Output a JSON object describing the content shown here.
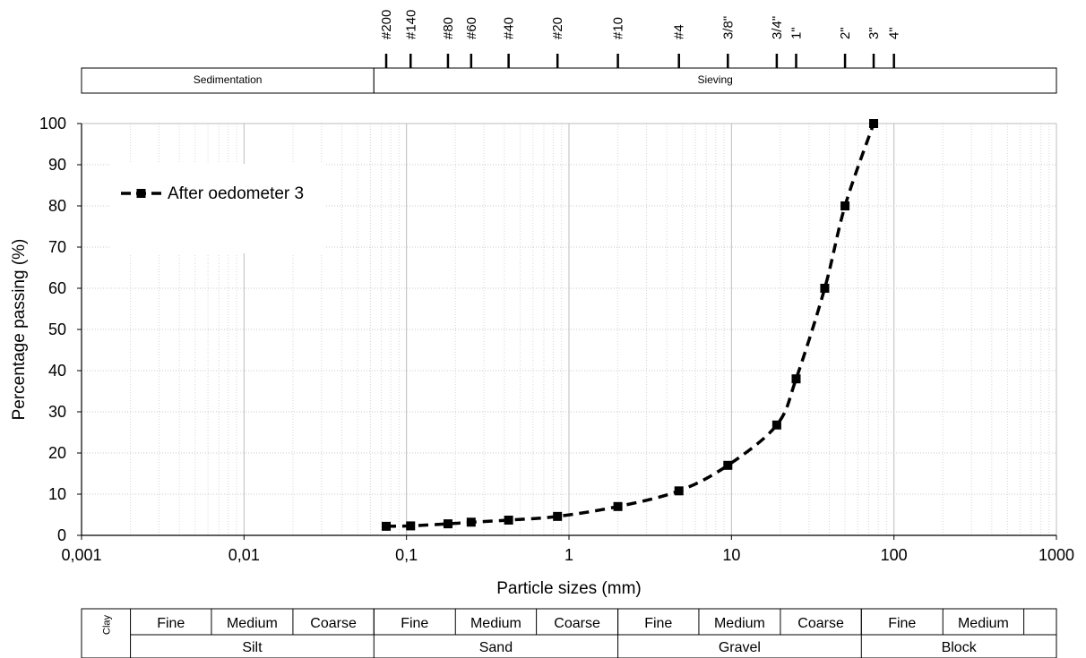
{
  "chart_data": {
    "type": "line",
    "xscale": "log",
    "xlim": [
      0.001,
      1000
    ],
    "ylim": [
      0,
      100
    ],
    "xlabel": "Particle sizes (mm)",
    "ylabel": "Percentage passing (%)",
    "x_tick_labels": [
      "0,001",
      "0,01",
      "0,1",
      "1",
      "10",
      "100",
      "1000"
    ],
    "y_tick_labels": [
      "0",
      "10",
      "20",
      "30",
      "40",
      "50",
      "60",
      "70",
      "80",
      "90",
      "100"
    ],
    "grid": true,
    "legend_position": "top-left",
    "series": [
      {
        "name": "After oedometer 3",
        "line_style": "dashed",
        "marker": "square",
        "color": "#000000",
        "x": [
          0.075,
          0.106,
          0.18,
          0.25,
          0.425,
          0.85,
          2.0,
          4.75,
          9.5,
          19.0,
          25.0,
          37.5,
          50.0,
          75.0
        ],
        "y": [
          2.2,
          2.3,
          2.8,
          3.2,
          3.7,
          4.6,
          7.0,
          10.8,
          17.0,
          26.8,
          38.0,
          60.0,
          80.0,
          100.0
        ]
      }
    ],
    "sieves": [
      {
        "label": "#200",
        "mm": 0.075
      },
      {
        "label": "#140",
        "mm": 0.106
      },
      {
        "label": "#80",
        "mm": 0.18
      },
      {
        "label": "#60",
        "mm": 0.25
      },
      {
        "label": "#40",
        "mm": 0.425
      },
      {
        "label": "#20",
        "mm": 0.85
      },
      {
        "label": "#10",
        "mm": 2.0
      },
      {
        "label": "#4",
        "mm": 4.75
      },
      {
        "label": "3/8\"",
        "mm": 9.5
      },
      {
        "label": "3/4\"",
        "mm": 19.0
      },
      {
        "label": "1\"",
        "mm": 25.0
      },
      {
        "label": "2\"",
        "mm": 50.0
      },
      {
        "label": "3\"",
        "mm": 75.0
      },
      {
        "label": "4\"",
        "mm": 100.0
      }
    ],
    "method_bands": [
      {
        "label": "Sedimentation",
        "from": 0.001,
        "to": 0.063
      },
      {
        "label": "Sieving",
        "from": 0.063,
        "to": 1000
      }
    ],
    "classification": {
      "clay": {
        "label": "Clay",
        "from": 0.001,
        "to": 0.002
      },
      "groups": [
        {
          "label": "Silt",
          "from": 0.002,
          "to": 0.063,
          "subs": [
            {
              "label": "Fine",
              "to": 0.0063
            },
            {
              "label": "Medium",
              "to": 0.02
            },
            {
              "label": "Coarse",
              "to": 0.063
            }
          ]
        },
        {
          "label": "Sand",
          "from": 0.063,
          "to": 2.0,
          "subs": [
            {
              "label": "Fine",
              "to": 0.2
            },
            {
              "label": "Medium",
              "to": 0.63
            },
            {
              "label": "Coarse",
              "to": 2.0
            }
          ]
        },
        {
          "label": "Gravel",
          "from": 2.0,
          "to": 63.0,
          "subs": [
            {
              "label": "Fine",
              "to": 6.3
            },
            {
              "label": "Medium",
              "to": 20.0
            },
            {
              "label": "Coarse",
              "to": 63.0
            }
          ]
        },
        {
          "label": "Block",
          "from": 63.0,
          "to": 1000,
          "subs": [
            {
              "label": "Fine",
              "to": 200.0
            },
            {
              "label": "Medium",
              "to": 630.0
            },
            {
              "label": "",
              "to": 1000
            }
          ]
        }
      ]
    }
  }
}
